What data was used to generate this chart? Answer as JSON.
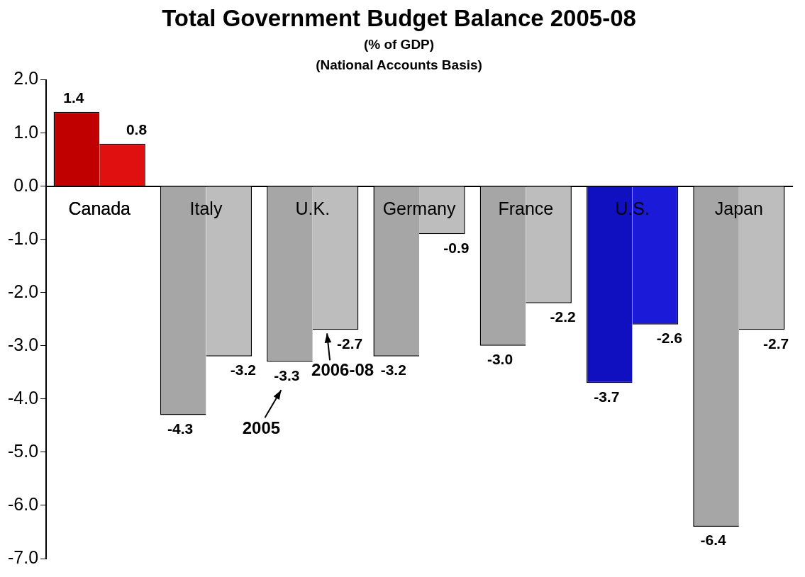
{
  "chart_data": {
    "type": "bar",
    "title": "Total Government Budget Balance 2005-08",
    "subtitle": "(% of GDP)\n(National Accounts Basis)",
    "categories": [
      "Canada",
      "Italy",
      "U.K.",
      "Germany",
      "France",
      "U.S.",
      "Japan"
    ],
    "series": [
      {
        "name": "2005",
        "colors": [
          "#c00000",
          "#a6a6a6",
          "#a6a6a6",
          "#a6a6a6",
          "#a6a6a6",
          "#1010c0",
          "#a6a6a6"
        ],
        "values": [
          1.4,
          -4.3,
          -3.3,
          -3.2,
          -3.0,
          -3.7,
          -6.4
        ],
        "value_labels": [
          "1.4",
          "-4.3",
          "-3.3",
          "-3.2",
          "-3.0",
          "-3.7",
          "-6.4"
        ]
      },
      {
        "name": "2006-08",
        "colors": [
          "#e01010",
          "#bdbdbd",
          "#bdbdbd",
          "#bdbdbd",
          "#bdbdbd",
          "#1a1ad8",
          "#bdbdbd"
        ],
        "values": [
          0.8,
          -3.2,
          -2.7,
          -0.9,
          -2.2,
          -2.6,
          -2.7
        ],
        "value_labels": [
          "0.8",
          "-3.2",
          "-2.7",
          "-0.9",
          "-2.2",
          "-2.6",
          "-2.7"
        ]
      }
    ],
    "ylim": [
      -7,
      2
    ],
    "yticks": [
      {
        "value": -7,
        "label": "-7.0"
      },
      {
        "value": -6,
        "label": "-6.0"
      },
      {
        "value": -5,
        "label": "-5.0"
      },
      {
        "value": -4,
        "label": "-4.0"
      },
      {
        "value": -3,
        "label": "-3.0"
      },
      {
        "value": -2,
        "label": "-2.0"
      },
      {
        "value": -1,
        "label": "-1.0"
      },
      {
        "value": 0,
        "label": "0.0"
      },
      {
        "value": 1,
        "label": "1.0"
      },
      {
        "value": 2,
        "label": "2.0"
      }
    ],
    "grid": false,
    "legend": false
  }
}
